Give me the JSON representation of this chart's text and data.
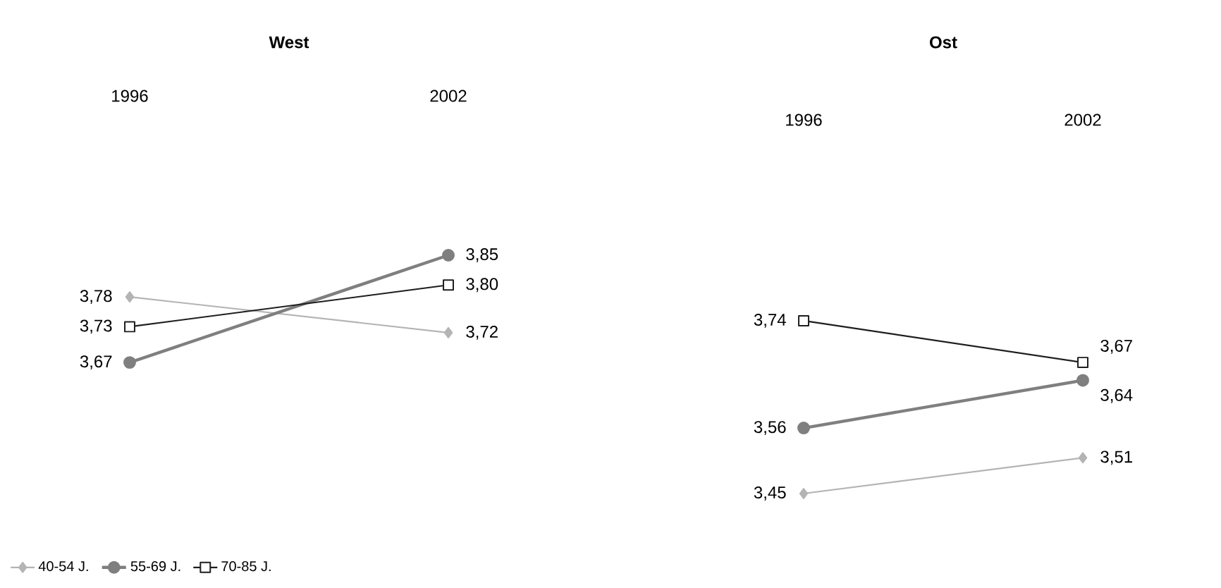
{
  "chart_data": [
    {
      "type": "line",
      "title": "West",
      "categories": [
        "1996",
        "2002"
      ],
      "legend": "bottom left",
      "series": [
        {
          "name": "40-54 J.",
          "color": "#b4b4b4",
          "marker": "diamond",
          "values": [
            3.78,
            3.72
          ],
          "value_labels": [
            "3,78",
            "3,72"
          ]
        },
        {
          "name": "55-69 J.",
          "color": "#7f7f7f",
          "marker": "circle",
          "values": [
            3.67,
            3.85
          ],
          "value_labels": [
            "3,67",
            "3,85"
          ]
        },
        {
          "name": "70-85 J.",
          "color": "#1e1e1e",
          "marker": "square",
          "values": [
            3.73,
            3.8
          ],
          "value_labels": [
            "3,73",
            "3,80"
          ]
        }
      ]
    },
    {
      "type": "line",
      "title": "Ost",
      "categories": [
        "1996",
        "2002"
      ],
      "series": [
        {
          "color": "#b4b4b4",
          "marker": "diamond",
          "values": [
            3.45,
            3.51
          ],
          "value_labels": [
            "3,45",
            "3,51"
          ]
        },
        {
          "color": "#7f7f7f",
          "marker": "circle",
          "values": [
            3.56,
            3.64
          ],
          "value_labels": [
            "3,56",
            "3,64"
          ]
        },
        {
          "color": "#1e1e1e",
          "marker": "square",
          "values": [
            3.74,
            3.67
          ],
          "value_labels": [
            "3,74",
            "3,67"
          ]
        }
      ]
    }
  ]
}
